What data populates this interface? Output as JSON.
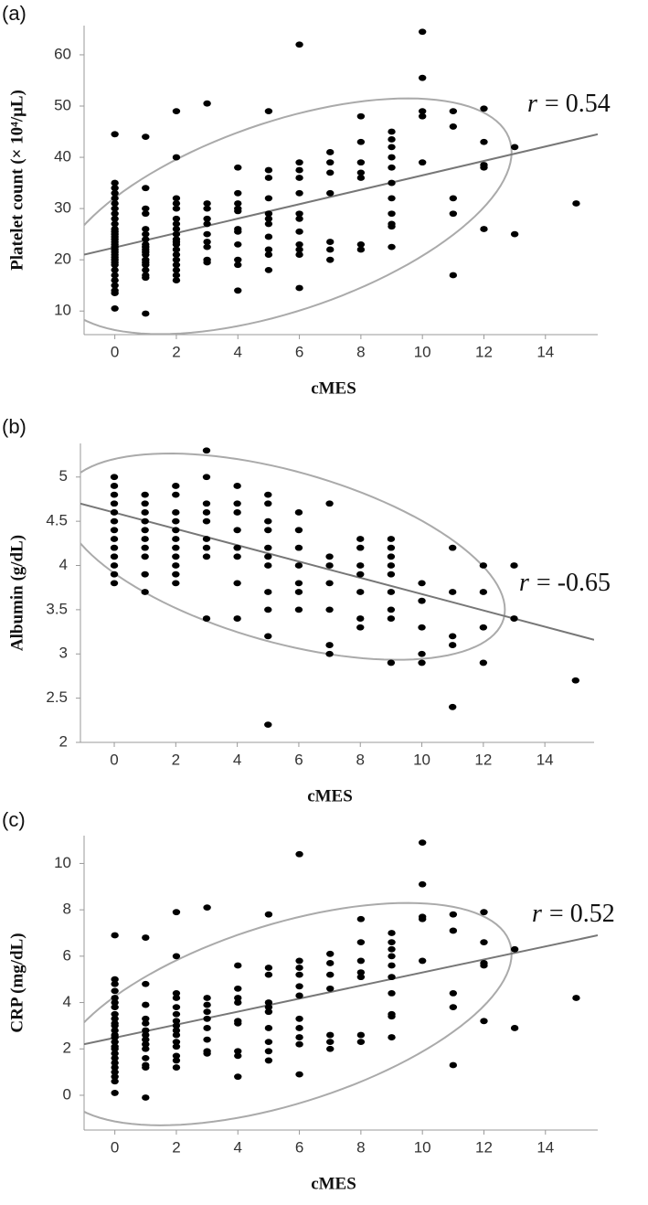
{
  "chart_data": [
    {
      "type": "scatter",
      "panel_label": "(a)",
      "xlabel": "cMES",
      "ylabel": "Platelet count (× 10⁴/μL)",
      "annotation_var": "r",
      "annotation": "= 0.54",
      "color": "#000000",
      "xlim": [
        -1,
        15.7
      ],
      "ylim": [
        5.4,
        65.7
      ],
      "xticks": [
        0,
        2,
        4,
        6,
        8,
        10,
        12,
        14
      ],
      "yticks": [
        10,
        20,
        30,
        40,
        50,
        60
      ],
      "x": [
        0,
        0,
        0,
        0,
        0,
        0,
        0,
        0,
        0,
        0,
        0,
        0,
        0,
        0,
        0,
        0,
        0,
        0,
        0,
        0,
        0,
        0,
        0,
        0,
        0,
        0,
        0,
        0,
        0,
        0,
        0,
        0,
        1,
        1,
        1,
        1,
        1,
        1,
        1,
        1,
        1,
        1,
        1,
        1,
        1,
        1,
        1,
        1,
        1,
        1,
        1,
        2,
        2,
        2,
        2,
        2,
        2,
        2,
        2,
        2,
        2,
        2,
        2,
        2,
        2,
        2,
        2,
        2,
        2,
        2,
        3,
        3,
        3,
        3,
        3,
        3,
        3,
        3,
        3,
        3,
        4,
        4,
        4,
        4,
        4,
        4,
        4,
        4,
        4,
        4,
        4,
        5,
        5,
        5,
        5,
        5,
        5,
        5,
        5,
        5,
        5,
        5,
        6,
        6,
        6,
        6,
        6,
        6,
        6,
        6,
        6,
        6,
        6,
        6,
        7,
        7,
        7,
        7,
        7,
        7,
        7,
        8,
        8,
        8,
        8,
        8,
        8,
        8,
        9,
        9,
        9,
        9,
        9,
        9,
        9,
        9,
        9,
        9,
        9,
        10,
        10,
        10,
        10,
        10,
        11,
        11,
        11,
        11,
        11,
        12,
        12,
        12,
        12,
        12,
        13,
        13,
        15
      ],
      "y": [
        44.5,
        35,
        34,
        33,
        32,
        31,
        30,
        29,
        28,
        27,
        26,
        25.5,
        25,
        24.5,
        24,
        23.5,
        23,
        22.5,
        22,
        21.5,
        21,
        20.5,
        20,
        19.5,
        19,
        18,
        17,
        16,
        15,
        14,
        13.5,
        10.5,
        44,
        34,
        30,
        29,
        26,
        25,
        24,
        23,
        22.5,
        22,
        21.5,
        21,
        20,
        19.5,
        19,
        18,
        17,
        16.5,
        9.5,
        49,
        40,
        32,
        31,
        30,
        28,
        27,
        26,
        25,
        24,
        23.5,
        23,
        22,
        21,
        20,
        19,
        18,
        17,
        16,
        50.5,
        31,
        30,
        28,
        27,
        25,
        23.5,
        22.5,
        20,
        19.5,
        38,
        33,
        31,
        30,
        29.5,
        26,
        25.5,
        23,
        20,
        19,
        14,
        49,
        37.5,
        36,
        32,
        29,
        28,
        27,
        24.5,
        22,
        21,
        18,
        62,
        39,
        37.5,
        36,
        33,
        29,
        28,
        25.5,
        23,
        22,
        21,
        14.5,
        41,
        39,
        37,
        33,
        23.5,
        22,
        20,
        48,
        43,
        39,
        37,
        36,
        23,
        22,
        45,
        43.5,
        42,
        40,
        38,
        35,
        32,
        29,
        27,
        26.5,
        22.5,
        64.5,
        55.5,
        49,
        48,
        39,
        49,
        46,
        32,
        29,
        17,
        49.5,
        43,
        38.5,
        38,
        26,
        42,
        25,
        31
      ],
      "fit_line": {
        "x": [
          -1,
          15.7
        ],
        "y": [
          21,
          44.5
        ],
        "color": "#777777"
      },
      "ellipse": {
        "center": [
          5.5,
          28.5
        ],
        "u": [
          7.4,
          12.5
        ],
        "v": [
          0,
          19.3
        ],
        "color": "#aaaaaa"
      }
    },
    {
      "type": "scatter",
      "panel_label": "(b)",
      "xlabel": "cMES",
      "ylabel": "Albumin (g/dL)",
      "annotation_var": "r",
      "annotation": "= -0.65",
      "color": "#000000",
      "xlim": [
        -1.1,
        15.6
      ],
      "ylim": [
        2,
        5.38
      ],
      "xticks": [
        0,
        2,
        4,
        6,
        8,
        10,
        12,
        14
      ],
      "yticks": [
        2,
        2.5,
        3,
        3.5,
        4,
        4.5,
        5
      ],
      "x": [
        0,
        0,
        0,
        0,
        0,
        0,
        0,
        0,
        0,
        0,
        0,
        0,
        0,
        1,
        1,
        1,
        1,
        1,
        1,
        1,
        1,
        1,
        1,
        2,
        2,
        2,
        2,
        2,
        2,
        2,
        2,
        2,
        2,
        2,
        3,
        3,
        3,
        3,
        3,
        3,
        3,
        3,
        3,
        4,
        4,
        4,
        4,
        4,
        4,
        4,
        4,
        5,
        5,
        5,
        5,
        5,
        5,
        5,
        5,
        5,
        5,
        5,
        6,
        6,
        6,
        6,
        6,
        6,
        6,
        7,
        7,
        7,
        7,
        7,
        7,
        7,
        8,
        8,
        8,
        8,
        8,
        8,
        8,
        9,
        9,
        9,
        9,
        9,
        9,
        9,
        9,
        9,
        10,
        10,
        10,
        10,
        10,
        11,
        11,
        11,
        11,
        11,
        12,
        12,
        12,
        12,
        13,
        13,
        15
      ],
      "y": [
        5,
        4.9,
        4.8,
        4.7,
        4.6,
        4.5,
        4.4,
        4.3,
        4.2,
        4.1,
        4,
        3.9,
        3.8,
        4.8,
        4.7,
        4.6,
        4.5,
        4.4,
        4.3,
        4.2,
        4.1,
        3.9,
        3.7,
        4.9,
        4.8,
        4.6,
        4.5,
        4.4,
        4.3,
        4.2,
        4.1,
        4,
        3.9,
        3.8,
        5.3,
        5,
        4.7,
        4.6,
        4.5,
        4.3,
        4.2,
        4.1,
        3.4,
        4.9,
        4.7,
        4.6,
        4.4,
        4.2,
        4.1,
        3.8,
        3.4,
        4.8,
        4.7,
        4.5,
        4.4,
        4.2,
        4.1,
        4,
        3.7,
        3.5,
        3.2,
        2.2,
        4.6,
        4.4,
        4.2,
        4,
        3.8,
        3.7,
        3.5,
        4.7,
        4.1,
        4,
        3.8,
        3.5,
        3.1,
        3,
        4.3,
        4.2,
        4,
        3.9,
        3.7,
        3.4,
        3.3,
        4.3,
        4.2,
        4.1,
        4,
        3.9,
        3.7,
        3.5,
        3.4,
        2.9,
        3.8,
        3.6,
        3.3,
        3,
        2.9,
        4.2,
        3.7,
        3.2,
        3.1,
        2.4,
        4,
        3.7,
        3.3,
        2.9,
        4,
        3.4,
        2.7
      ],
      "fit_line": {
        "x": [
          -1.1,
          15.6
        ],
        "y": [
          4.7,
          3.16
        ],
        "color": "#777777"
      },
      "ellipse": {
        "center": [
          5.5,
          4.1
        ],
        "u": [
          7.2,
          -0.6
        ],
        "v": [
          0,
          1.0
        ],
        "color": "#aaaaaa"
      }
    },
    {
      "type": "scatter",
      "panel_label": "(c)",
      "xlabel": "cMES",
      "ylabel": "CRP (mg/dL)",
      "annotation_var": "r",
      "annotation": "= 0.52",
      "color": "#000000",
      "xlim": [
        -1,
        15.7
      ],
      "ylim": [
        -1.5,
        11.2
      ],
      "xticks": [
        0,
        2,
        4,
        6,
        8,
        10,
        12,
        14
      ],
      "yticks": [
        0,
        2,
        4,
        6,
        8,
        10
      ],
      "x": [
        0,
        0,
        0,
        0,
        0,
        0,
        0,
        0,
        0,
        0,
        0,
        0,
        0,
        0,
        0,
        0,
        0,
        0,
        0,
        0,
        0,
        0,
        0,
        0,
        0,
        1,
        1,
        1,
        1,
        1,
        1,
        1,
        1,
        1,
        1,
        1,
        1,
        1,
        1,
        2,
        2,
        2,
        2,
        2,
        2,
        2,
        2,
        2,
        2,
        2,
        2,
        2,
        2,
        2,
        3,
        3,
        3,
        3,
        3,
        3,
        3,
        3,
        3,
        4,
        4,
        4,
        4,
        4,
        4,
        4,
        4,
        4,
        5,
        5,
        5,
        5,
        5,
        5,
        5,
        5,
        5,
        5,
        6,
        6,
        6,
        6,
        6,
        6,
        6,
        6,
        6,
        6,
        6,
        7,
        7,
        7,
        7,
        7,
        7,
        7,
        8,
        8,
        8,
        8,
        8,
        8,
        8,
        9,
        9,
        9,
        9,
        9,
        9,
        9,
        9,
        9,
        9,
        10,
        10,
        10,
        10,
        10,
        11,
        11,
        11,
        11,
        11,
        12,
        12,
        12,
        12,
        12,
        13,
        13,
        15
      ],
      "y": [
        6.9,
        5,
        4.8,
        4.5,
        4.2,
        4,
        3.8,
        3.5,
        3.3,
        3.1,
        3,
        2.8,
        2.6,
        2.5,
        2.3,
        2.1,
        2,
        1.8,
        1.6,
        1.4,
        1.2,
        1,
        0.8,
        0.6,
        0.1,
        6.8,
        4.8,
        3.9,
        3.3,
        3.1,
        2.8,
        2.6,
        2.4,
        2.2,
        2,
        1.6,
        1.3,
        1.2,
        -0.1,
        7.9,
        6,
        4.4,
        4.2,
        3.8,
        3.5,
        3.2,
        3,
        2.8,
        2.6,
        2.3,
        2.1,
        1.7,
        1.5,
        1.2,
        8.1,
        4.2,
        3.9,
        3.6,
        3.3,
        2.9,
        2.4,
        1.9,
        1.8,
        5.6,
        4.6,
        4.2,
        4,
        3.2,
        3.1,
        1.9,
        1.7,
        0.8,
        7.8,
        5.5,
        5.2,
        4,
        3.8,
        3.6,
        2.9,
        2.3,
        1.9,
        1.5,
        10.4,
        5.8,
        5.5,
        5.2,
        4.7,
        4.3,
        3.3,
        2.9,
        2.5,
        2.2,
        0.9,
        6.1,
        5.7,
        5.2,
        4.6,
        2.6,
        2.3,
        2,
        7.6,
        6.6,
        5.8,
        5.3,
        5.1,
        2.6,
        2.3,
        7,
        6.6,
        6.3,
        6,
        5.6,
        5.1,
        4.4,
        3.5,
        3.4,
        2.5,
        10.9,
        9.1,
        7.7,
        7.6,
        5.8,
        7.8,
        7.1,
        4.4,
        3.8,
        1.3,
        7.9,
        6.6,
        5.7,
        5.6,
        3.2,
        6.3,
        2.9,
        4.2
      ],
      "fit_line": {
        "x": [
          -1,
          15.7
        ],
        "y": [
          2.2,
          6.9
        ],
        "color": "#777777"
      },
      "ellipse": {
        "center": [
          5.5,
          3.5
        ],
        "u": [
          7.4,
          2.6
        ],
        "v": [
          0,
          4.03
        ],
        "color": "#aaaaaa"
      }
    }
  ]
}
